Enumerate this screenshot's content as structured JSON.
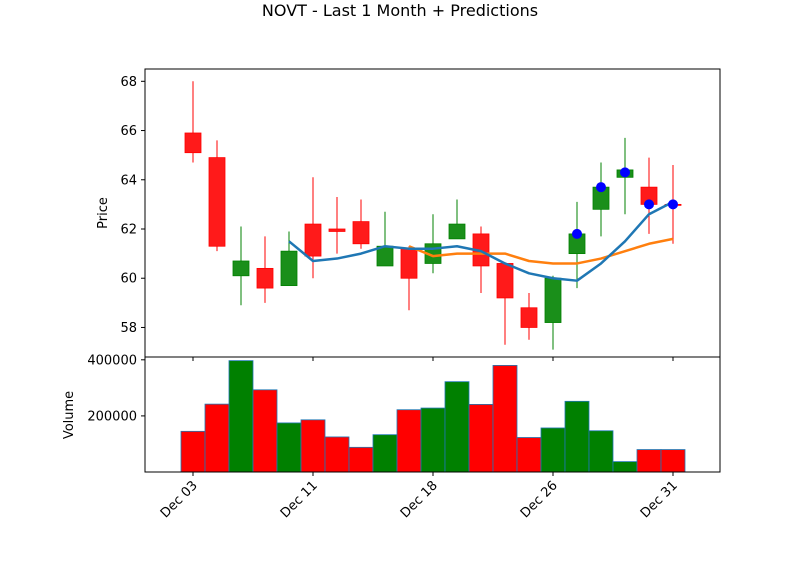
{
  "chart_data": {
    "type": "candlestick",
    "title": "NOVT - Last 1 Month + Predictions",
    "price_panel": {
      "ylabel": "Price",
      "ylim": [
        56.8,
        68.5
      ],
      "yticks": [
        58,
        60,
        62,
        64,
        66,
        68
      ],
      "candles": [
        {
          "open": 65.9,
          "high": 68.0,
          "low": 64.7,
          "close": 65.1,
          "color": "red"
        },
        {
          "open": 64.9,
          "high": 65.6,
          "low": 61.1,
          "close": 61.3,
          "color": "red"
        },
        {
          "open": 60.1,
          "high": 62.1,
          "low": 58.9,
          "close": 60.7,
          "color": "green"
        },
        {
          "open": 60.4,
          "high": 61.7,
          "low": 59.0,
          "close": 59.6,
          "color": "red"
        },
        {
          "open": 59.7,
          "high": 61.9,
          "low": 59.7,
          "close": 61.1,
          "color": "green"
        },
        {
          "open": 62.2,
          "high": 64.1,
          "low": 60.0,
          "close": 60.9,
          "color": "red"
        },
        {
          "open": 62.0,
          "high": 63.3,
          "low": 61.0,
          "close": 61.9,
          "color": "red"
        },
        {
          "open": 62.3,
          "high": 63.2,
          "low": 61.2,
          "close": 61.4,
          "color": "red"
        },
        {
          "open": 60.5,
          "high": 62.7,
          "low": 60.5,
          "close": 61.3,
          "color": "green"
        },
        {
          "open": 61.2,
          "high": 61.3,
          "low": 58.7,
          "close": 60.0,
          "color": "red"
        },
        {
          "open": 60.6,
          "high": 62.6,
          "low": 60.2,
          "close": 61.4,
          "color": "green"
        },
        {
          "open": 61.6,
          "high": 63.2,
          "low": 61.6,
          "close": 62.2,
          "color": "green"
        },
        {
          "open": 61.8,
          "high": 62.1,
          "low": 59.4,
          "close": 60.5,
          "color": "red"
        },
        {
          "open": 60.6,
          "high": 60.6,
          "low": 57.3,
          "close": 59.2,
          "color": "red"
        },
        {
          "open": 58.8,
          "high": 59.4,
          "low": 57.5,
          "close": 58.0,
          "color": "red"
        },
        {
          "open": 58.2,
          "high": 60.1,
          "low": 57.1,
          "close": 60.0,
          "color": "green"
        },
        {
          "open": 61.0,
          "high": 63.1,
          "low": 59.6,
          "close": 61.8,
          "color": "green"
        },
        {
          "open": 62.8,
          "high": 64.7,
          "low": 61.7,
          "close": 63.7,
          "color": "green"
        },
        {
          "open": 64.1,
          "high": 65.7,
          "low": 62.6,
          "close": 64.4,
          "color": "green"
        },
        {
          "open": 63.7,
          "high": 64.9,
          "low": 61.8,
          "close": 63.0,
          "color": "red"
        },
        {
          "open": 63.0,
          "high": 64.6,
          "low": 61.4,
          "close": 63.0,
          "color": "red"
        }
      ],
      "ma_short": {
        "start_index": 4,
        "values": [
          61.5,
          60.7,
          60.8,
          61.0,
          61.3,
          61.2,
          61.2,
          61.3,
          61.1,
          60.6,
          60.2,
          60.0,
          59.9,
          60.6,
          61.5,
          62.6,
          63.1
        ],
        "color": "#1f77b4"
      },
      "ma_long": {
        "start_index": 9,
        "values": [
          61.3,
          60.9,
          61.0,
          61.0,
          61.0,
          60.7,
          60.6,
          60.6,
          60.8,
          61.1,
          61.4,
          61.6
        ],
        "color": "#ff7f0e"
      },
      "predictions": {
        "start_index": 16,
        "values": [
          61.8,
          63.7,
          64.3,
          63.0,
          63.0
        ],
        "color": "#0000ff"
      }
    },
    "volume_panel": {
      "ylabel": "Volume",
      "ylim": [
        0,
        410000
      ],
      "yticks": [
        200000,
        400000
      ],
      "ytick_labels": [
        "200000",
        "400000"
      ],
      "values": [
        145000,
        242000,
        397000,
        293000,
        175000,
        186000,
        125000,
        88000,
        133000,
        222000,
        228000,
        322000,
        241000,
        380000,
        123000,
        157000,
        252000,
        147000,
        37000,
        80000,
        80000
      ],
      "colors": [
        "red",
        "red",
        "green",
        "red",
        "green",
        "red",
        "red",
        "red",
        "green",
        "red",
        "green",
        "green",
        "red",
        "red",
        "red",
        "green",
        "green",
        "green",
        "green",
        "red",
        "red"
      ]
    },
    "x_tick_labels": [
      {
        "index": 0,
        "label": "Dec 03"
      },
      {
        "index": 5,
        "label": "Dec 11"
      },
      {
        "index": 10,
        "label": "Dec 18"
      },
      {
        "index": 15,
        "label": "Dec 26"
      },
      {
        "index": 20,
        "label": "Dec 31"
      }
    ],
    "colors": {
      "up": "#008000",
      "down": "#ff0000",
      "up_fill": "#1a8f1a",
      "down_fill": "#ff1a1a"
    }
  }
}
